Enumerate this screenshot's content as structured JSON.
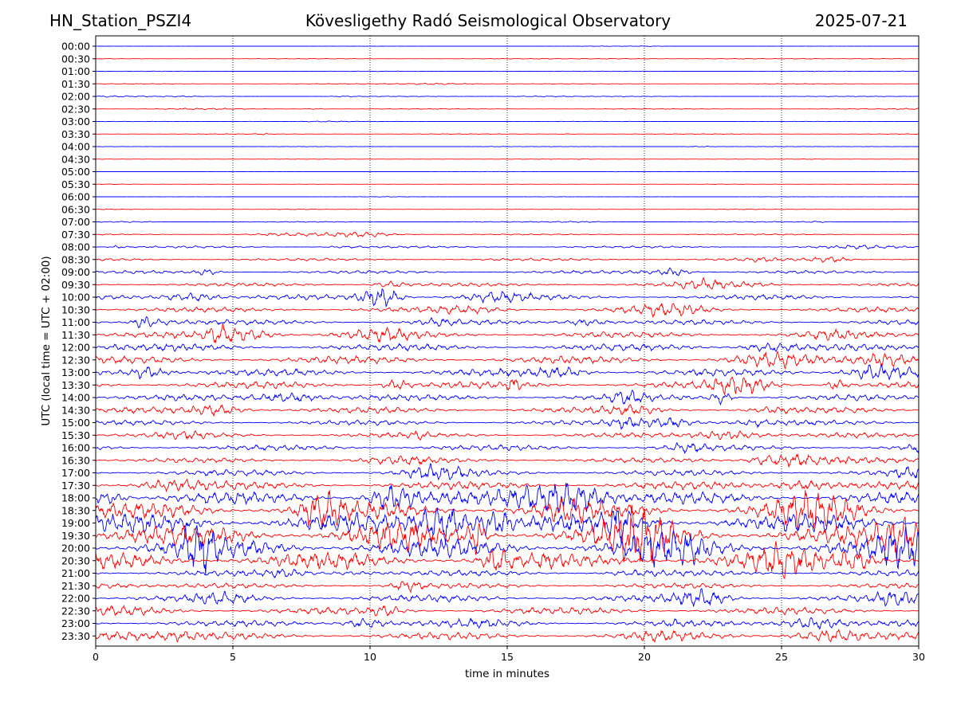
{
  "header": {
    "station": "HN_Station_PSZI4",
    "observatory": "Kövesligethy Radó Seismological Observatory",
    "date": "2025-07-21"
  },
  "chart_data": {
    "type": "line",
    "title": "Kövesligethy Radó Seismological Observatory",
    "xlabel": "time in minutes",
    "ylabel": "UTC (local time = UTC + 02:00)",
    "xlim": [
      0,
      30
    ],
    "x_ticks": [
      "0",
      "5",
      "10",
      "15",
      "20",
      "25",
      "30"
    ],
    "x_tick_values": [
      0,
      5,
      10,
      15,
      20,
      25,
      30
    ],
    "grid": "vertical dotted at every 5 minutes",
    "series_colors": [
      "#0000ff",
      "#ff0000"
    ],
    "rows": [
      "00:00",
      "00:30",
      "01:00",
      "01:30",
      "02:00",
      "02:30",
      "03:00",
      "03:30",
      "04:00",
      "04:30",
      "05:00",
      "05:30",
      "06:00",
      "06:30",
      "07:00",
      "07:30",
      "08:00",
      "08:30",
      "09:00",
      "09:30",
      "10:00",
      "10:30",
      "11:00",
      "11:30",
      "12:00",
      "12:30",
      "13:00",
      "13:30",
      "14:00",
      "14:30",
      "15:00",
      "15:30",
      "16:00",
      "16:30",
      "17:00",
      "17:30",
      "18:00",
      "18:30",
      "19:00",
      "19:30",
      "20:00",
      "20:30",
      "21:00",
      "21:30",
      "22:00",
      "22:30",
      "23:00",
      "23:30"
    ],
    "relative_amplitude": [
      0.02,
      0.05,
      0.05,
      0.05,
      0.06,
      0.06,
      0.04,
      0.05,
      0.04,
      0.03,
      0.02,
      0.02,
      0.02,
      0.03,
      0.08,
      0.12,
      0.2,
      0.25,
      0.3,
      0.35,
      0.5,
      0.5,
      0.5,
      0.6,
      0.7,
      0.75,
      0.7,
      0.7,
      0.6,
      0.6,
      0.5,
      0.5,
      0.55,
      0.5,
      0.6,
      0.8,
      1.2,
      1.6,
      1.9,
      2.0,
      1.9,
      1.6,
      0.6,
      0.5,
      0.7,
      0.7,
      0.6,
      0.7
    ]
  }
}
